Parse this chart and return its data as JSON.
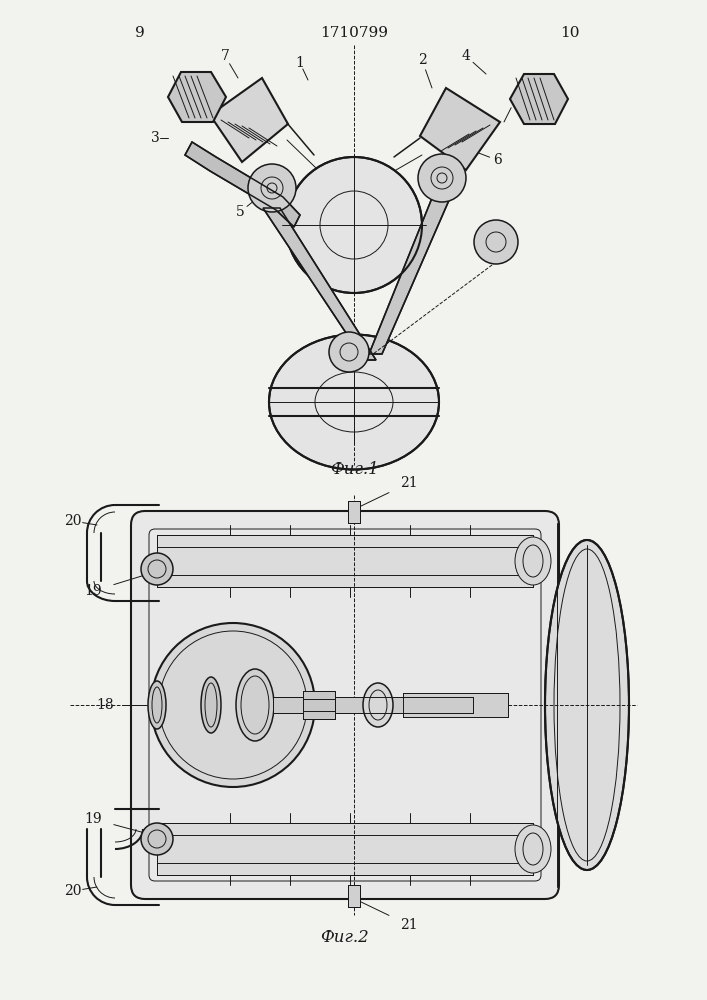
{
  "page_number_left": "9",
  "page_number_right": "10",
  "patent_number": "1710799",
  "fig1_label": "Фиг.1",
  "fig2_label": "Фиг.2",
  "bg_color": "#f2f2ef",
  "line_color": "#1a1a1a"
}
